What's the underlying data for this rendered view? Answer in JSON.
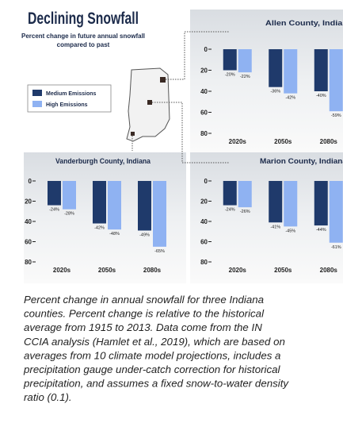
{
  "title": "Declining Snowfall",
  "subtitle": [
    "Percent change in future annual snowfall",
    "compared to past"
  ],
  "legend": [
    {
      "name": "Medium Emissions",
      "color": "#1f3a6b"
    },
    {
      "name": "High Emissions",
      "color": "#8fb2f2"
    }
  ],
  "chart_data": [
    {
      "type": "bar",
      "title": "Allen County, Indiana",
      "categories": [
        "2020s",
        "2050s",
        "2080s"
      ],
      "series": [
        {
          "values": [
            -20,
            -36,
            -40
          ],
          "value_labels": [
            "-20%",
            "-36%",
            "-40%"
          ]
        },
        {
          "values": [
            -22,
            -42,
            -59
          ],
          "value_labels": [
            "-22%",
            "-42%",
            "-59%"
          ]
        }
      ],
      "ylim": [
        -80,
        0
      ],
      "yticks": [
        0,
        {
          "value": -20,
          "label": "20"
        },
        {
          "value": -40,
          "label": "40"
        },
        {
          "value": -60,
          "label": "60"
        },
        {
          "value": -80,
          "label": "80"
        }
      ]
    },
    {
      "type": "bar",
      "title": "Vanderburgh County, Indiana",
      "categories": [
        "2020s",
        "2050s",
        "2080s"
      ],
      "series": [
        {
          "values": [
            -24,
            -42,
            -49
          ],
          "value_labels": [
            "-24%",
            "-42%",
            "-49%"
          ]
        },
        {
          "values": [
            -28,
            -48,
            -65
          ],
          "value_labels": [
            "-28%",
            "-48%",
            "-65%"
          ]
        }
      ],
      "ylim": [
        -80,
        0
      ],
      "yticks": [
        0,
        {
          "value": -20,
          "label": "20"
        },
        {
          "value": -40,
          "label": "40"
        },
        {
          "value": -60,
          "label": "60"
        },
        {
          "value": -80,
          "label": "80"
        }
      ]
    },
    {
      "type": "bar",
      "title": "Marion County, Indiana",
      "categories": [
        "2020s",
        "2050s",
        "2080s"
      ],
      "series": [
        {
          "values": [
            -24,
            -41,
            -44
          ],
          "value_labels": [
            "-24%",
            "-41%",
            "-44%"
          ]
        },
        {
          "values": [
            -26,
            -45,
            -61
          ],
          "value_labels": [
            "-26%",
            "-45%",
            "-61%"
          ]
        }
      ],
      "ylim": [
        -80,
        0
      ],
      "yticks": [
        0,
        {
          "value": -20,
          "label": "20"
        },
        {
          "value": -40,
          "label": "40"
        },
        {
          "value": -60,
          "label": "60"
        },
        {
          "value": -80,
          "label": "80"
        }
      ]
    }
  ],
  "caption": [
    "Percent change in annual snowfall for three Indiana",
    "counties. Percent change is relative to the historical",
    "average from 1915 to 2013. Data come from the IN",
    "CCIA analysis (Hamlet et al., 2019), which are based on",
    "averages from 10 climate model projections, includes a",
    "precipitation gauge under-catch correction for historical",
    "precipitation, and assumes a fixed snow-to-water density",
    "ratio (0.1)."
  ]
}
